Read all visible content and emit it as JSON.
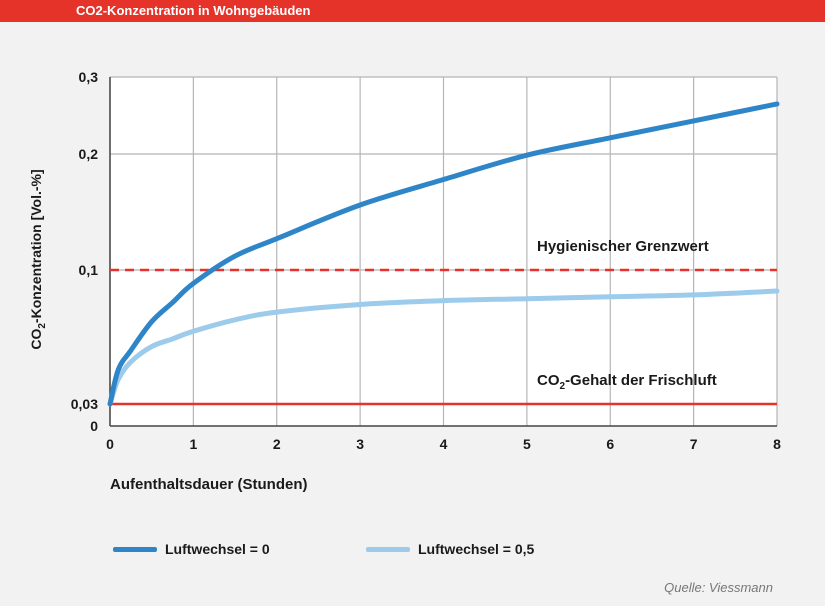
{
  "header": {
    "title": "CO2-Konzentration in Wohngebäuden"
  },
  "chart_data": {
    "type": "line",
    "xlabel": "Aufenthaltsdauer (Stunden)",
    "ylabel": "CO2-Konzentration [Vol.-%]",
    "x_ticks": [
      0,
      1,
      2,
      3,
      4,
      5,
      6,
      7,
      8
    ],
    "y_ticks": [
      {
        "value": 0,
        "label": "0"
      },
      {
        "value": 0.03,
        "label": "0,03"
      },
      {
        "value": 0.1,
        "label": "0,1"
      },
      {
        "value": 0.2,
        "label": "0,2"
      },
      {
        "value": 0.3,
        "label": "0,3"
      }
    ],
    "xlim": [
      0,
      8
    ],
    "ylim": [
      0,
      0.3
    ],
    "grid": true,
    "series": [
      {
        "name": "Luftwechsel = 0",
        "color": "#2e86c8",
        "x": [
          0,
          0.1,
          0.25,
          0.5,
          0.75,
          1,
          1.5,
          2,
          3,
          4,
          5,
          6,
          7,
          8
        ],
        "y": [
          0.03,
          0.048,
          0.058,
          0.073,
          0.083,
          0.093,
          0.112,
          0.127,
          0.156,
          0.178,
          0.199,
          0.221,
          0.243,
          0.265
        ]
      },
      {
        "name": "Luftwechsel = 0,5",
        "color": "#9ccbeb",
        "x": [
          0,
          0.1,
          0.25,
          0.5,
          0.75,
          1,
          1.5,
          2,
          3,
          4,
          5,
          6,
          7,
          8
        ],
        "y": [
          0.03,
          0.043,
          0.052,
          0.06,
          0.064,
          0.068,
          0.074,
          0.078,
          0.082,
          0.084,
          0.085,
          0.086,
          0.087,
          0.089
        ]
      }
    ],
    "reference_lines": [
      {
        "label": "Hygienischer Grenzwert",
        "value": 0.1,
        "color": "#e6332a",
        "style": "dashed"
      },
      {
        "label": "CO₂-Gehalt der Frischluft",
        "value": 0.03,
        "color": "#e6332a",
        "style": "solid"
      }
    ],
    "legend": {
      "placement": "bottom",
      "items": [
        {
          "label": "Luftwechsel = 0",
          "color": "#2e86c8"
        },
        {
          "label": "Luftwechsel = 0,5",
          "color": "#9ccbeb"
        }
      ]
    }
  },
  "source": "Quelle: Viessmann"
}
